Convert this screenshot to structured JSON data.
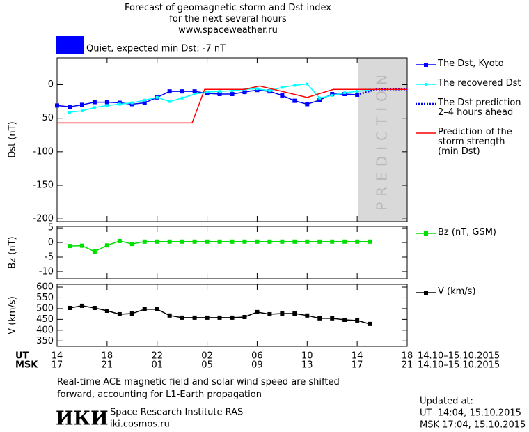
{
  "header": {
    "title": "Forecast of geomagnetic storm and Dst index\nfor the next several hours\nwww.spaceweather.ru",
    "status_color": "#0000ff",
    "status_text": "Quiet, expected min Dst: -7 nT"
  },
  "chart_data": [
    {
      "type": "line",
      "y_label": "Dst (nT)",
      "xlim": [
        0,
        28
      ],
      "ylim": [
        -204,
        40
      ],
      "yticks": [
        0,
        -50,
        -100,
        -150,
        -200
      ],
      "prediction_band": {
        "label": "PREDICTION",
        "xlim": [
          24.1,
          28
        ],
        "color": "#d9d9d9"
      },
      "series": [
        {
          "name": "The Dst, Kyoto",
          "color": "#0000ff",
          "marker": "square",
          "x": [
            0,
            1,
            2,
            3,
            4,
            5,
            6,
            7,
            8,
            9,
            10,
            11,
            12,
            13,
            14,
            15,
            16,
            17,
            18,
            19,
            20,
            21,
            22,
            23,
            24
          ],
          "values": [
            -31,
            -33,
            -30,
            -26,
            -26,
            -27,
            -29,
            -27,
            -19,
            -10,
            -10,
            -10,
            -13,
            -14,
            -14,
            -11,
            -8,
            -10,
            -16,
            -24,
            -29,
            -23,
            -14,
            -14,
            -15
          ]
        },
        {
          "name": "The recovered Dst",
          "color": "#00ffff",
          "marker": "small-square",
          "x": [
            1,
            2,
            3,
            4,
            5,
            6,
            7,
            8,
            9,
            10,
            11,
            12,
            13,
            14,
            15,
            16,
            17,
            18,
            19,
            20,
            21,
            22,
            23,
            24,
            25
          ],
          "values": [
            -41,
            -39,
            -34,
            -31,
            -29,
            -27,
            -23,
            -19,
            -25,
            -20,
            -14,
            -11,
            -10,
            -9,
            -7,
            -6,
            -9,
            -4,
            -1,
            1,
            -20,
            -16,
            -12,
            -10,
            -8
          ]
        },
        {
          "name": "The Dst prediction\n2–4 hours ahead",
          "color": "#0000ff",
          "dash": "dotted",
          "x": [
            24,
            25.5,
            28
          ],
          "values": [
            -15,
            -7,
            -7
          ]
        },
        {
          "name": "Prediction of the\nstorm strength\n(min Dst)",
          "color": "#ff0000",
          "x": [
            0,
            10.8,
            11.8,
            15,
            16.2,
            20,
            22.1,
            28
          ],
          "values": [
            -57,
            -57,
            -7,
            -7,
            -2,
            -19,
            -7,
            -7
          ]
        }
      ]
    },
    {
      "type": "line",
      "y_label": "Bz (nT)",
      "xlim": [
        0,
        28
      ],
      "ylim": [
        -12.4,
        5.5
      ],
      "yticks": [
        5,
        0,
        -5,
        -10
      ],
      "series": [
        {
          "name": "Bz (nT, GSM)",
          "color": "#00e000",
          "marker": "square",
          "x": [
            1,
            2,
            3,
            4,
            5,
            6,
            7,
            8,
            9,
            10,
            11,
            12,
            13,
            14,
            15,
            16,
            17,
            18,
            19,
            20,
            21,
            22,
            23,
            24,
            25
          ],
          "values": [
            -1.2,
            -1.1,
            -3.1,
            -1,
            0.5,
            -0.5,
            0.3,
            0.3,
            0.3,
            0.3,
            0.3,
            0.3,
            0.3,
            0.3,
            0.3,
            0.3,
            0.3,
            0.3,
            0.3,
            0.3,
            0.3,
            0.3,
            0.3,
            0.3,
            0.3
          ]
        }
      ]
    },
    {
      "type": "line",
      "y_label": "V (km/s)",
      "xlim": [
        0,
        28
      ],
      "ylim": [
        325,
        613
      ],
      "yticks": [
        600,
        550,
        500,
        450,
        400,
        350
      ],
      "xticks": [
        {
          "value": 0,
          "label": "14"
        },
        {
          "value": 4,
          "label": "18"
        },
        {
          "value": 8,
          "label": "22"
        },
        {
          "value": 12,
          "label": "02"
        },
        {
          "value": 16,
          "label": "06"
        },
        {
          "value": 20,
          "label": "10"
        },
        {
          "value": 24,
          "label": "14"
        },
        {
          "value": 28,
          "label": "18"
        }
      ],
      "msk_tick_labels": [
        "17",
        "21",
        "01",
        "05",
        "09",
        "13",
        "17",
        "21"
      ],
      "ut_label": "UT",
      "msk_label": "MSK",
      "ut_dates": "14.10–15.10.2015",
      "msk_dates": "14.10–15.10.2015",
      "series": [
        {
          "name": "V (km/s)",
          "color": "#000000",
          "marker": "square",
          "x": [
            1,
            2,
            3,
            4,
            5,
            6,
            7,
            8,
            9,
            10,
            11,
            12,
            13,
            14,
            15,
            16,
            17,
            18,
            19,
            20,
            21,
            22,
            23,
            24,
            25
          ],
          "values": [
            503,
            513,
            503,
            490,
            474,
            477,
            497,
            497,
            468,
            458,
            458,
            458,
            458,
            458,
            461,
            484,
            474,
            477,
            477,
            468,
            455,
            455,
            448,
            445,
            429
          ]
        }
      ]
    }
  ],
  "footer": {
    "note": "Real-time ACE magnetic field and solar wind speed are shifted\nforward, accounting for L1-Earth propagation",
    "logo": "ИКИ",
    "institute": "Space Research Institute RAS",
    "site": "iki.cosmos.ru",
    "updated_label": "Updated at:",
    "updated_ut": "UT  14:04, 15.10.2015",
    "updated_msk": "MSK 17:04, 15.10.2015"
  }
}
